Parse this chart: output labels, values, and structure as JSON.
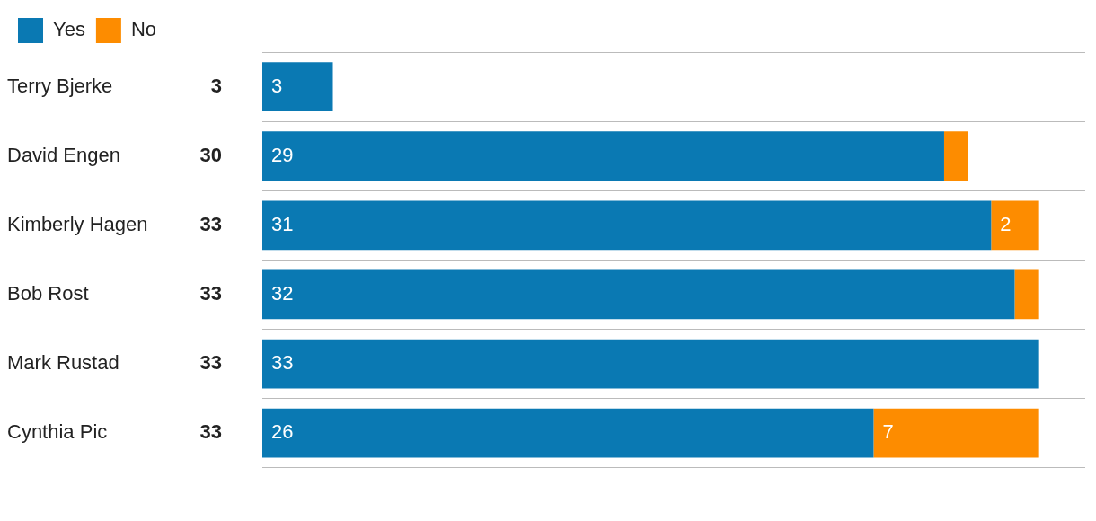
{
  "chart_data": {
    "type": "bar",
    "orientation": "horizontal",
    "stacked": true,
    "legend": "top left",
    "grid": "y",
    "categories": [
      "Terry Bjerke",
      "David Engen",
      "Kimberly Hagen",
      "Bob Rost",
      "Mark Rustad",
      "Cynthia Pic"
    ],
    "series": [
      {
        "name": "Yes",
        "color": "#0a79b3",
        "values": [
          3,
          29,
          31,
          32,
          33,
          26
        ],
        "value_labels": [
          "3",
          "29",
          "31",
          "32",
          "33",
          "26"
        ]
      },
      {
        "name": "No",
        "color": "#fd8c00",
        "values": [
          0,
          1,
          2,
          1,
          0,
          7
        ],
        "value_labels": [
          null,
          null,
          "2",
          null,
          null,
          "7"
        ]
      }
    ],
    "totals": [
      "3",
      "30",
      "33",
      "33",
      "33",
      "33"
    ]
  }
}
